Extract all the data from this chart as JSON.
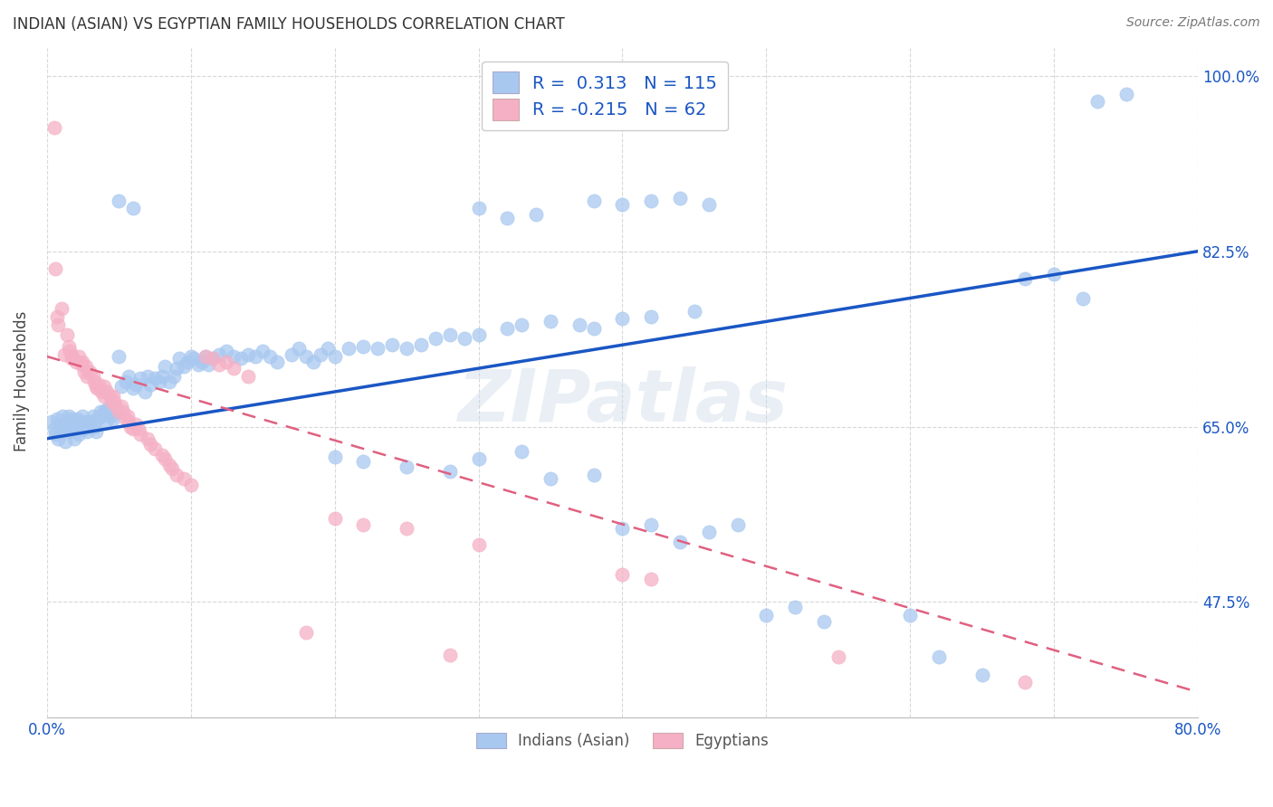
{
  "title": "INDIAN (ASIAN) VS EGYPTIAN FAMILY HOUSEHOLDS CORRELATION CHART",
  "source": "Source: ZipAtlas.com",
  "ylabel": "Family Households",
  "legend_label1": "Indians (Asian)",
  "legend_label2": "Egyptians",
  "R1": 0.313,
  "N1": 115,
  "R2": -0.215,
  "N2": 62,
  "color_blue": "#a8c8f0",
  "color_pink": "#f5b0c5",
  "line_blue": "#1a56c4",
  "line_pink": "#e06080",
  "watermark": "ZIPatlas",
  "background_color": "#ffffff",
  "grid_color": "#d8d8d8",
  "x_min": 0.0,
  "x_max": 0.8,
  "y_min": 0.36,
  "y_max": 1.03,
  "blue_line_x": [
    0.0,
    0.8
  ],
  "blue_line_y": [
    0.638,
    0.825
  ],
  "pink_line_x": [
    0.0,
    0.8
  ],
  "pink_line_y": [
    0.72,
    0.385
  ],
  "y_ticks": [
    0.475,
    0.65,
    0.825,
    1.0
  ],
  "y_tick_labels": [
    "47.5%",
    "65.0%",
    "82.5%",
    "100.0%"
  ],
  "x_ticks": [
    0.0,
    0.1,
    0.2,
    0.3,
    0.4,
    0.5,
    0.6,
    0.7,
    0.8
  ],
  "blue_dots": [
    [
      0.003,
      0.655
    ],
    [
      0.005,
      0.648
    ],
    [
      0.006,
      0.642
    ],
    [
      0.007,
      0.658
    ],
    [
      0.008,
      0.638
    ],
    [
      0.009,
      0.652
    ],
    [
      0.01,
      0.645
    ],
    [
      0.011,
      0.66
    ],
    [
      0.012,
      0.648
    ],
    [
      0.013,
      0.635
    ],
    [
      0.014,
      0.655
    ],
    [
      0.015,
      0.66
    ],
    [
      0.016,
      0.645
    ],
    [
      0.017,
      0.658
    ],
    [
      0.018,
      0.648
    ],
    [
      0.019,
      0.638
    ],
    [
      0.02,
      0.65
    ],
    [
      0.021,
      0.658
    ],
    [
      0.022,
      0.642
    ],
    [
      0.023,
      0.655
    ],
    [
      0.025,
      0.66
    ],
    [
      0.026,
      0.648
    ],
    [
      0.027,
      0.655
    ],
    [
      0.028,
      0.645
    ],
    [
      0.03,
      0.655
    ],
    [
      0.032,
      0.66
    ],
    [
      0.033,
      0.65
    ],
    [
      0.034,
      0.645
    ],
    [
      0.035,
      0.658
    ],
    [
      0.037,
      0.665
    ],
    [
      0.038,
      0.66
    ],
    [
      0.04,
      0.665
    ],
    [
      0.041,
      0.655
    ],
    [
      0.042,
      0.668
    ],
    [
      0.044,
      0.67
    ],
    [
      0.045,
      0.66
    ],
    [
      0.046,
      0.658
    ],
    [
      0.048,
      0.665
    ],
    [
      0.05,
      0.72
    ],
    [
      0.052,
      0.69
    ],
    [
      0.055,
      0.695
    ],
    [
      0.057,
      0.7
    ],
    [
      0.06,
      0.688
    ],
    [
      0.062,
      0.692
    ],
    [
      0.065,
      0.698
    ],
    [
      0.068,
      0.685
    ],
    [
      0.07,
      0.7
    ],
    [
      0.072,
      0.692
    ],
    [
      0.075,
      0.698
    ],
    [
      0.078,
      0.695
    ],
    [
      0.08,
      0.7
    ],
    [
      0.082,
      0.71
    ],
    [
      0.085,
      0.695
    ],
    [
      0.088,
      0.7
    ],
    [
      0.09,
      0.708
    ],
    [
      0.092,
      0.718
    ],
    [
      0.095,
      0.71
    ],
    [
      0.098,
      0.715
    ],
    [
      0.1,
      0.72
    ],
    [
      0.102,
      0.718
    ],
    [
      0.105,
      0.712
    ],
    [
      0.108,
      0.715
    ],
    [
      0.11,
      0.72
    ],
    [
      0.112,
      0.712
    ],
    [
      0.115,
      0.718
    ],
    [
      0.12,
      0.722
    ],
    [
      0.125,
      0.725
    ],
    [
      0.13,
      0.72
    ],
    [
      0.135,
      0.718
    ],
    [
      0.14,
      0.722
    ],
    [
      0.145,
      0.72
    ],
    [
      0.15,
      0.725
    ],
    [
      0.155,
      0.72
    ],
    [
      0.16,
      0.715
    ],
    [
      0.17,
      0.722
    ],
    [
      0.175,
      0.728
    ],
    [
      0.18,
      0.72
    ],
    [
      0.185,
      0.715
    ],
    [
      0.19,
      0.722
    ],
    [
      0.195,
      0.728
    ],
    [
      0.2,
      0.72
    ],
    [
      0.21,
      0.728
    ],
    [
      0.22,
      0.73
    ],
    [
      0.23,
      0.728
    ],
    [
      0.24,
      0.732
    ],
    [
      0.25,
      0.728
    ],
    [
      0.26,
      0.732
    ],
    [
      0.27,
      0.738
    ],
    [
      0.28,
      0.742
    ],
    [
      0.29,
      0.738
    ],
    [
      0.3,
      0.742
    ],
    [
      0.32,
      0.748
    ],
    [
      0.33,
      0.752
    ],
    [
      0.35,
      0.755
    ],
    [
      0.37,
      0.752
    ],
    [
      0.38,
      0.748
    ],
    [
      0.4,
      0.758
    ],
    [
      0.42,
      0.76
    ],
    [
      0.45,
      0.765
    ],
    [
      0.05,
      0.875
    ],
    [
      0.06,
      0.868
    ],
    [
      0.3,
      0.868
    ],
    [
      0.32,
      0.858
    ],
    [
      0.34,
      0.862
    ],
    [
      0.38,
      0.875
    ],
    [
      0.4,
      0.872
    ],
    [
      0.42,
      0.875
    ],
    [
      0.44,
      0.878
    ],
    [
      0.46,
      0.872
    ],
    [
      0.2,
      0.62
    ],
    [
      0.22,
      0.615
    ],
    [
      0.25,
      0.61
    ],
    [
      0.28,
      0.605
    ],
    [
      0.3,
      0.618
    ],
    [
      0.33,
      0.625
    ],
    [
      0.35,
      0.598
    ],
    [
      0.38,
      0.602
    ],
    [
      0.4,
      0.548
    ],
    [
      0.42,
      0.552
    ],
    [
      0.44,
      0.535
    ],
    [
      0.46,
      0.545
    ],
    [
      0.48,
      0.552
    ],
    [
      0.5,
      0.462
    ],
    [
      0.52,
      0.47
    ],
    [
      0.54,
      0.455
    ],
    [
      0.6,
      0.462
    ],
    [
      0.62,
      0.42
    ],
    [
      0.65,
      0.402
    ],
    [
      0.68,
      0.798
    ],
    [
      0.7,
      0.802
    ],
    [
      0.72,
      0.778
    ],
    [
      0.73,
      0.975
    ],
    [
      0.75,
      0.982
    ]
  ],
  "pink_dots": [
    [
      0.005,
      0.948
    ],
    [
      0.006,
      0.808
    ],
    [
      0.007,
      0.76
    ],
    [
      0.008,
      0.752
    ],
    [
      0.01,
      0.768
    ],
    [
      0.012,
      0.722
    ],
    [
      0.014,
      0.742
    ],
    [
      0.015,
      0.73
    ],
    [
      0.016,
      0.725
    ],
    [
      0.017,
      0.718
    ],
    [
      0.018,
      0.72
    ],
    [
      0.02,
      0.715
    ],
    [
      0.022,
      0.72
    ],
    [
      0.024,
      0.712
    ],
    [
      0.025,
      0.715
    ],
    [
      0.026,
      0.705
    ],
    [
      0.027,
      0.71
    ],
    [
      0.028,
      0.7
    ],
    [
      0.03,
      0.705
    ],
    [
      0.032,
      0.7
    ],
    [
      0.033,
      0.695
    ],
    [
      0.034,
      0.69
    ],
    [
      0.035,
      0.688
    ],
    [
      0.036,
      0.692
    ],
    [
      0.038,
      0.685
    ],
    [
      0.04,
      0.68
    ],
    [
      0.04,
      0.69
    ],
    [
      0.042,
      0.685
    ],
    [
      0.044,
      0.68
    ],
    [
      0.045,
      0.675
    ],
    [
      0.046,
      0.68
    ],
    [
      0.047,
      0.675
    ],
    [
      0.048,
      0.67
    ],
    [
      0.05,
      0.665
    ],
    [
      0.052,
      0.67
    ],
    [
      0.053,
      0.665
    ],
    [
      0.055,
      0.658
    ],
    [
      0.056,
      0.66
    ],
    [
      0.057,
      0.655
    ],
    [
      0.058,
      0.65
    ],
    [
      0.06,
      0.648
    ],
    [
      0.062,
      0.652
    ],
    [
      0.064,
      0.648
    ],
    [
      0.065,
      0.642
    ],
    [
      0.07,
      0.638
    ],
    [
      0.072,
      0.632
    ],
    [
      0.075,
      0.628
    ],
    [
      0.08,
      0.622
    ],
    [
      0.082,
      0.618
    ],
    [
      0.085,
      0.612
    ],
    [
      0.087,
      0.608
    ],
    [
      0.09,
      0.602
    ],
    [
      0.095,
      0.598
    ],
    [
      0.1,
      0.592
    ],
    [
      0.11,
      0.72
    ],
    [
      0.115,
      0.718
    ],
    [
      0.12,
      0.712
    ],
    [
      0.125,
      0.715
    ],
    [
      0.13,
      0.708
    ],
    [
      0.14,
      0.7
    ],
    [
      0.18,
      0.445
    ],
    [
      0.2,
      0.558
    ],
    [
      0.22,
      0.552
    ],
    [
      0.25,
      0.548
    ],
    [
      0.28,
      0.422
    ],
    [
      0.3,
      0.532
    ],
    [
      0.4,
      0.502
    ],
    [
      0.42,
      0.498
    ],
    [
      0.55,
      0.42
    ],
    [
      0.68,
      0.395
    ]
  ]
}
